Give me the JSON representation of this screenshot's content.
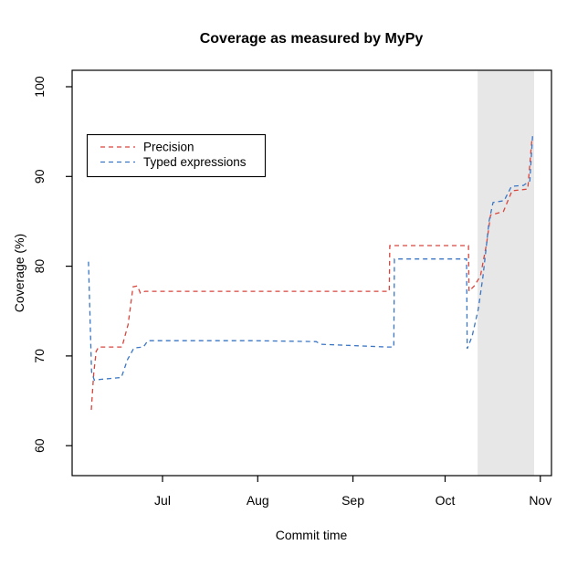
{
  "chart_data": {
    "type": "line",
    "title": "Coverage as measured by MyPy",
    "xlabel": "Commit time",
    "ylabel": "Coverage (%)",
    "grid": false,
    "x_unit": "days since Jun 1",
    "x_ticks": [
      {
        "label": "Jul",
        "day": 30
      },
      {
        "label": "Aug",
        "day": 61
      },
      {
        "label": "Sep",
        "day": 92
      },
      {
        "label": "Oct",
        "day": 122
      },
      {
        "label": "Nov",
        "day": 153
      }
    ],
    "y_ticks": [
      60,
      70,
      80,
      90,
      100
    ],
    "ylim": [
      56.7,
      101.8
    ],
    "xlim_days": [
      0,
      157
    ],
    "highlight_band": {
      "days": [
        132.6,
        151.0
      ],
      "color": "#e7e7e7",
      "note": "shaded period late Oct"
    },
    "legend": {
      "position": "upper-left-inset",
      "entries": [
        {
          "label": "Precision",
          "color": "#d9453c",
          "linestyle": "dashed"
        },
        {
          "label": "Typed expressions",
          "color": "#3a76c5",
          "linestyle": "dashed"
        }
      ]
    },
    "series": [
      {
        "name": "Precision",
        "color": "#d9453c",
        "linestyle": "dashed",
        "points": [
          [
            6.8,
            64.0
          ],
          [
            7.6,
            68.0
          ],
          [
            8.4,
            70.5
          ],
          [
            9.2,
            71.0
          ],
          [
            16.8,
            71.0
          ],
          [
            18.8,
            73.5
          ],
          [
            20.4,
            77.7
          ],
          [
            21.8,
            77.8
          ],
          [
            22.8,
            77.0
          ],
          [
            24.3,
            77.2
          ],
          [
            103.8,
            77.2
          ],
          [
            104.0,
            82.3
          ],
          [
            129.6,
            82.3
          ],
          [
            129.8,
            77.2
          ],
          [
            131.5,
            77.8
          ],
          [
            133.5,
            78.9
          ],
          [
            135.5,
            82.5
          ],
          [
            136.8,
            85.7
          ],
          [
            141.0,
            86.1
          ],
          [
            143.8,
            88.4
          ],
          [
            148.9,
            88.6
          ],
          [
            150.3,
            94.3
          ]
        ]
      },
      {
        "name": "Typed expressions",
        "color": "#3a76c5",
        "linestyle": "dashed",
        "points": [
          [
            5.9,
            80.5
          ],
          [
            6.9,
            68.2
          ],
          [
            7.8,
            67.3
          ],
          [
            10.0,
            67.4
          ],
          [
            16.6,
            67.6
          ],
          [
            18.6,
            69.6
          ],
          [
            20.7,
            70.9
          ],
          [
            23.8,
            71.0
          ],
          [
            25.2,
            71.7
          ],
          [
            60.0,
            71.7
          ],
          [
            80.0,
            71.6
          ],
          [
            81.5,
            71.3
          ],
          [
            103.0,
            71.0
          ],
          [
            105.3,
            71.0
          ],
          [
            105.5,
            80.8
          ],
          [
            129.0,
            80.8
          ],
          [
            129.2,
            70.8
          ],
          [
            130.8,
            72.2
          ],
          [
            132.8,
            75.2
          ],
          [
            134.3,
            78.8
          ],
          [
            135.3,
            81.8
          ],
          [
            136.3,
            85.0
          ],
          [
            137.6,
            87.1
          ],
          [
            141.2,
            87.3
          ],
          [
            143.6,
            88.9
          ],
          [
            147.5,
            89.0
          ],
          [
            149.6,
            89.5
          ],
          [
            150.5,
            94.7
          ]
        ]
      }
    ]
  },
  "geometry_note": "R-style base graphics plot, black box frame, outward ticks, rotated y tick labels"
}
